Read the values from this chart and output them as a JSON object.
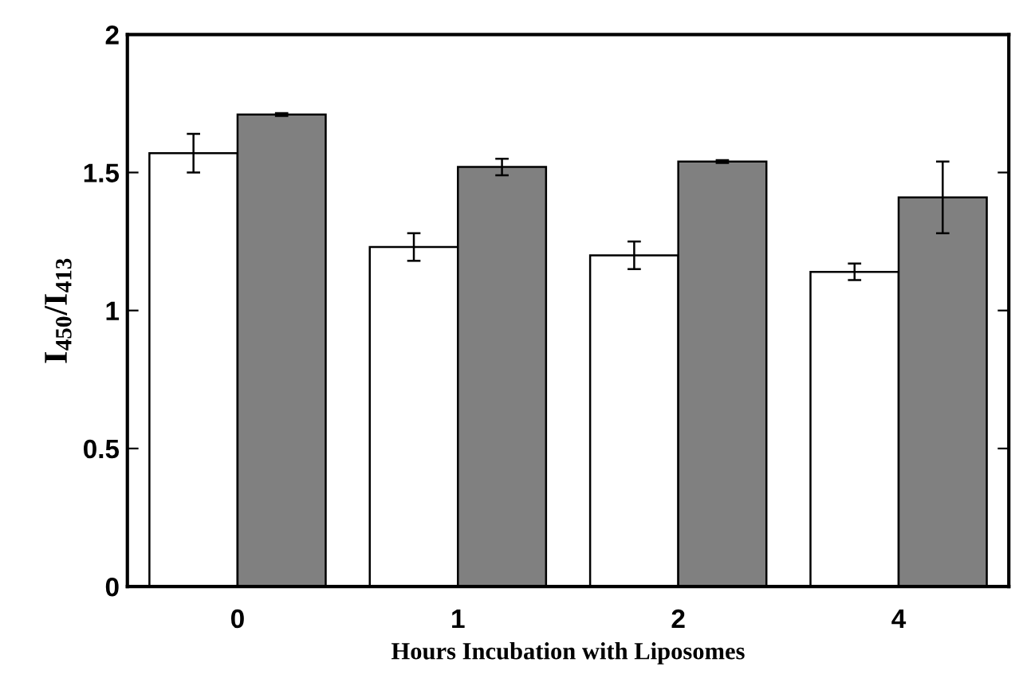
{
  "chart_data": {
    "type": "bar",
    "xlabel": "Hours Incubation with Liposomes",
    "ylabel": "I$_{450}$/I$_{413}$",
    "categories": [
      "0",
      "1",
      "2",
      "4"
    ],
    "series": [
      {
        "color": "#ffffff",
        "values": [
          1.57,
          1.23,
          1.2,
          1.14
        ],
        "errors": [
          0.07,
          0.05,
          0.05,
          0.03
        ]
      },
      {
        "color": "#808080",
        "values": [
          1.71,
          1.52,
          1.54,
          1.41
        ],
        "errors": [
          0.005,
          0.03,
          0.005,
          0.13
        ]
      }
    ],
    "ylim": [
      0,
      2
    ],
    "yticks": [
      0,
      0.5,
      1,
      1.5,
      2
    ],
    "grid": false,
    "legend": false
  }
}
